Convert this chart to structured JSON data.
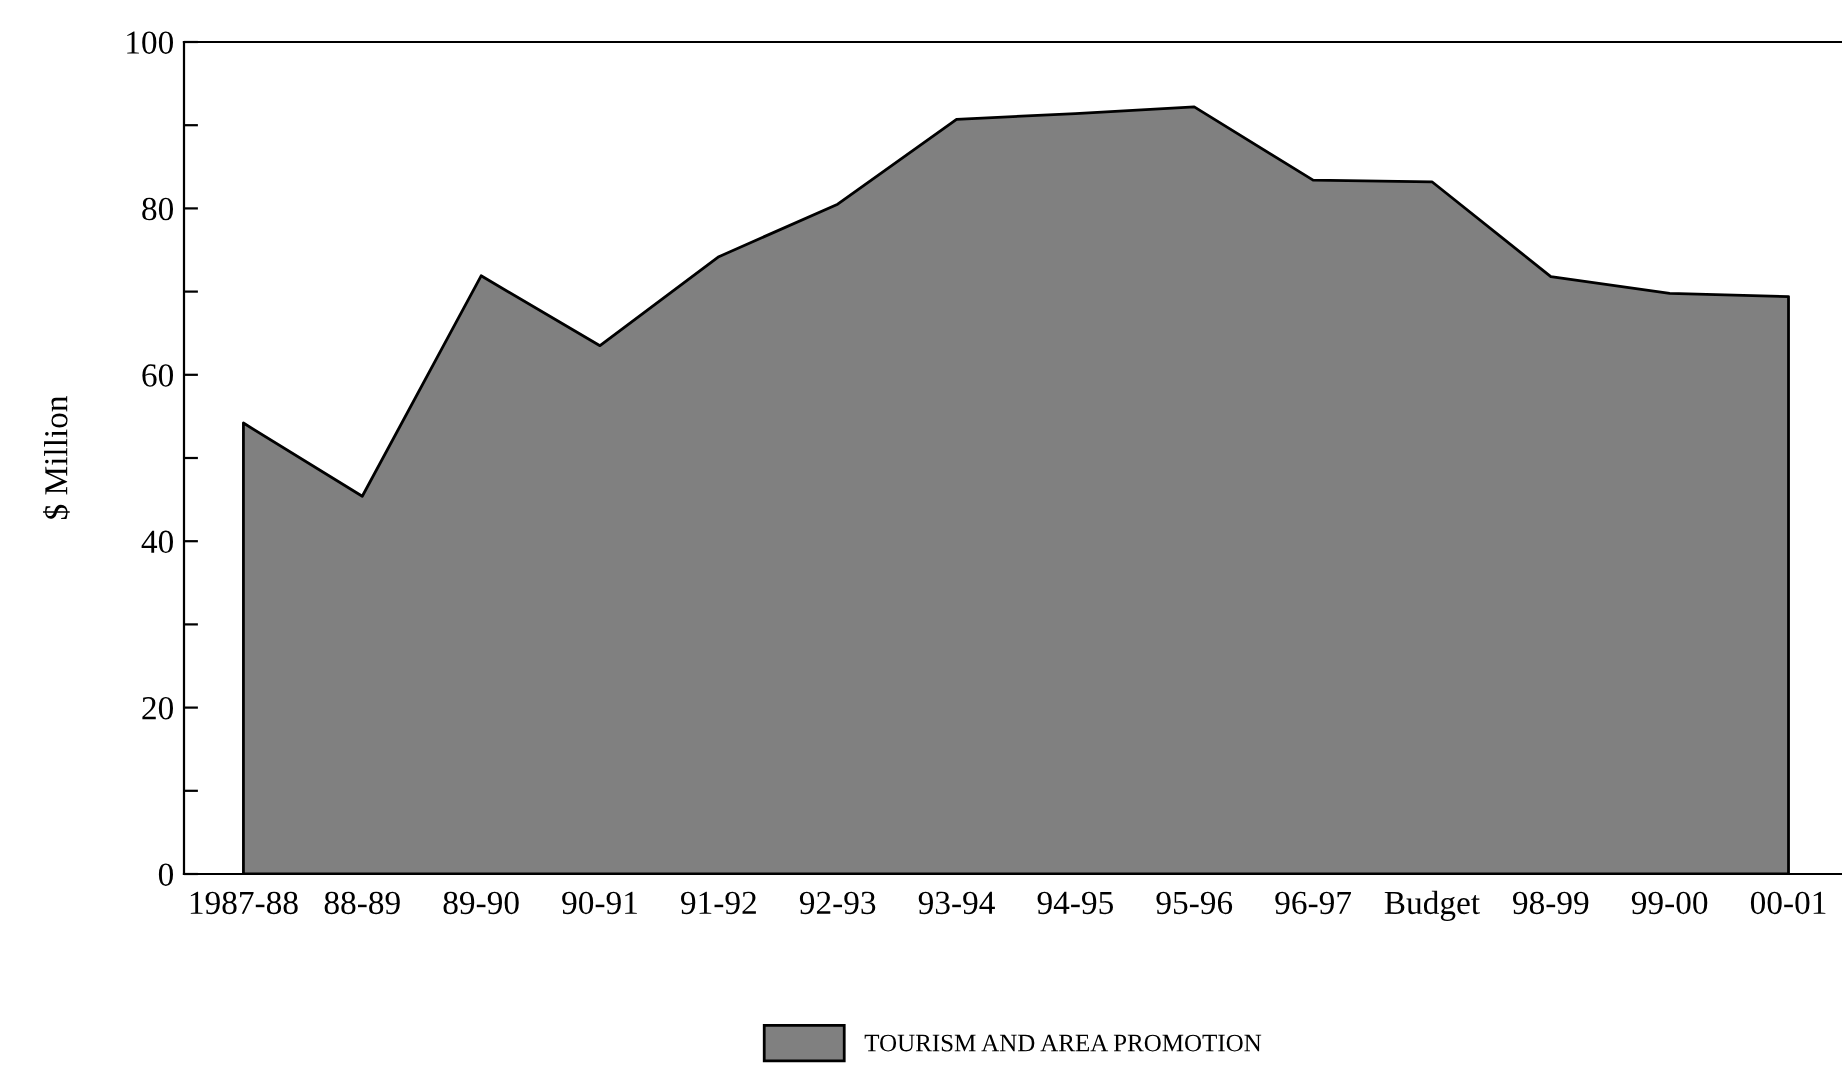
{
  "chart_data": {
    "type": "area",
    "ylabel": "$ Million",
    "categories": [
      "1987-88",
      "88-89",
      "89-90",
      "90-91",
      "91-92",
      "92-93",
      "93-94",
      "94-95",
      "95-96",
      "96-97",
      "Budget",
      "98-99",
      "99-00",
      "00-01"
    ],
    "series": [
      {
        "name": "TOURISM AND AREA PROMOTION",
        "color": "#808080",
        "values": [
          54.2,
          45.4,
          71.9,
          63.5,
          74.2,
          80.5,
          90.7,
          91.4,
          92.2,
          83.4,
          83.2,
          71.8,
          69.8,
          69.4
        ]
      }
    ],
    "ylim": [
      0,
      100
    ],
    "yticks": [
      0,
      {
        "value": 10,
        "label": null
      },
      20,
      {
        "value": 30,
        "label": null
      },
      40,
      {
        "value": 50,
        "label": null
      },
      60,
      {
        "value": 70,
        "label": null
      },
      80,
      {
        "value": 90,
        "label": null
      },
      100
    ],
    "grid": false,
    "legend": "bottom"
  }
}
